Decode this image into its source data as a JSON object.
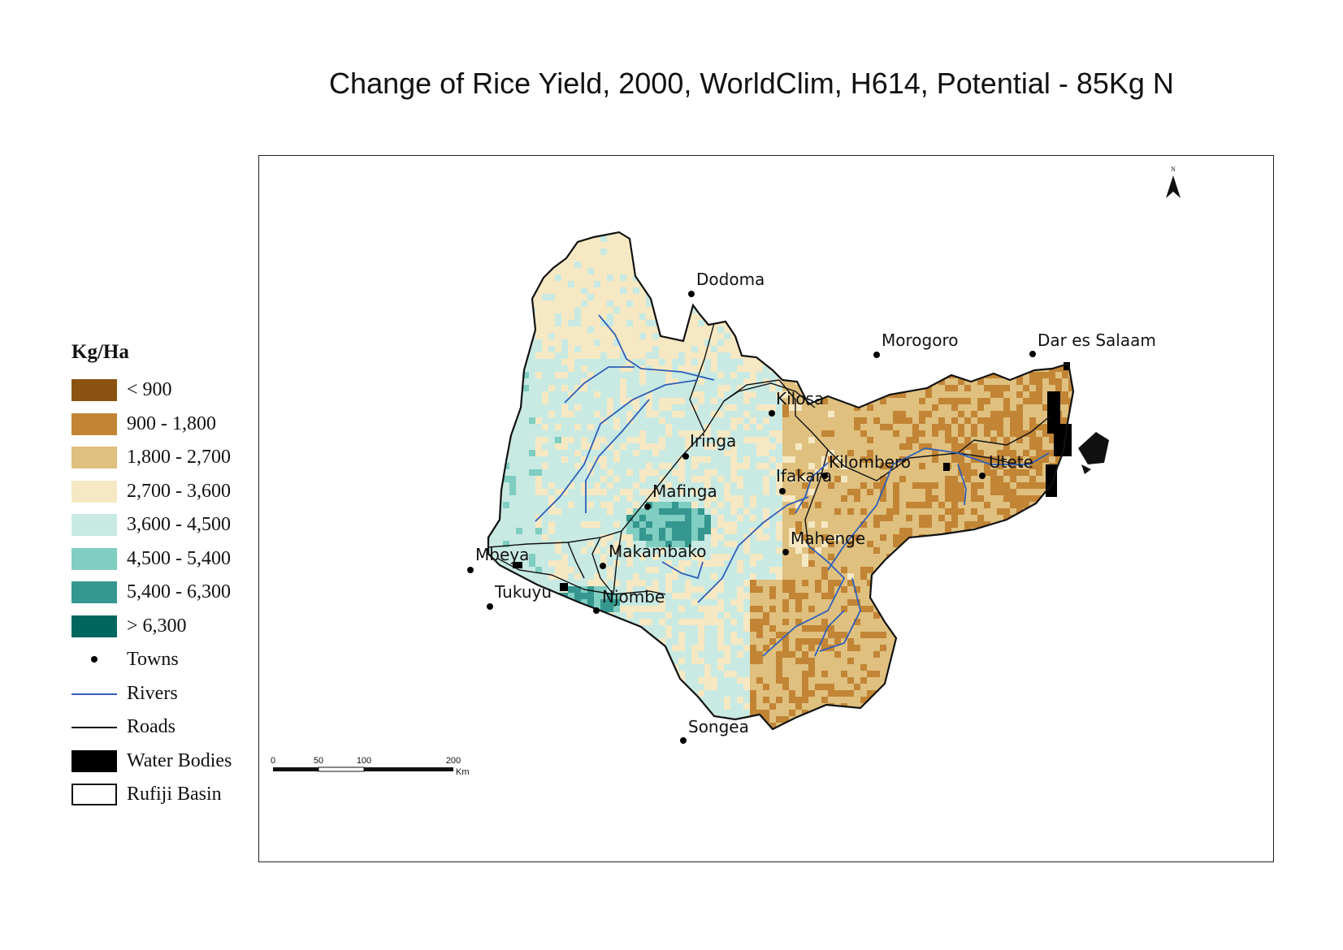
{
  "title": "Change of Rice Yield, 2000, WorldClim, H614, Potential - 85Kg N",
  "legend": {
    "title": "Kg/Ha",
    "classes": [
      {
        "label": "< 900",
        "color": "#8c5211"
      },
      {
        "label": "900 - 1,800",
        "color": "#c28535"
      },
      {
        "label": "1,800 - 2,700",
        "color": "#dfc07f"
      },
      {
        "label": "2,700 - 3,600",
        "color": "#f6e8c3"
      },
      {
        "label": "3,600 - 4,500",
        "color": "#c8eae3"
      },
      {
        "label": "4,500 - 5,400",
        "color": "#80cdc1"
      },
      {
        "label": "5,400 - 6,300",
        "color": "#35978f"
      },
      {
        "label": "> 6,300",
        "color": "#01665e"
      }
    ],
    "symbols": {
      "towns": "Towns",
      "rivers": "Rivers",
      "roads": "Roads",
      "water_bodies": "Water Bodies",
      "basin": "Rufiji Basin"
    },
    "river_color": "#2f5fb8",
    "road_color": "#111111",
    "water_color": "#000000"
  },
  "towns": [
    {
      "name": "Dodoma"
    },
    {
      "name": "Morogoro"
    },
    {
      "name": "Dar es Salaam"
    },
    {
      "name": "Kilosa"
    },
    {
      "name": "Iringa"
    },
    {
      "name": "Kilombero"
    },
    {
      "name": "Utete"
    },
    {
      "name": "Ifakara"
    },
    {
      "name": "Mafinga"
    },
    {
      "name": "Mahenge"
    },
    {
      "name": "Makambako"
    },
    {
      "name": "Mbeya"
    },
    {
      "name": "Tukuyu"
    },
    {
      "name": "Njombe"
    },
    {
      "name": "Songea"
    }
  ],
  "north_arrow": {
    "label": "N",
    "icon": "north-arrow-icon"
  },
  "scale_bar": {
    "ticks": [
      "0",
      "50",
      "100",
      "200"
    ],
    "unit": "Km"
  }
}
